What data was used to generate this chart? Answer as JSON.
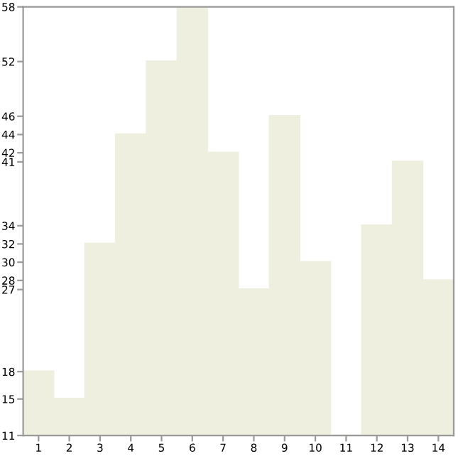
{
  "chart_data": {
    "type": "bar",
    "categories": [
      "1",
      "2",
      "3",
      "4",
      "5",
      "6",
      "7",
      "8",
      "9",
      "10",
      "11",
      "12",
      "13",
      "14"
    ],
    "values": [
      18,
      15,
      32,
      44,
      52,
      58,
      42,
      27,
      46,
      30,
      11,
      34,
      41,
      28
    ],
    "color": "#efefe0",
    "ylim": [
      11,
      58
    ],
    "yticks": [
      11,
      15,
      18,
      27,
      28,
      30,
      32,
      34,
      41,
      42,
      44,
      46,
      52,
      58
    ],
    "grid": false
  }
}
